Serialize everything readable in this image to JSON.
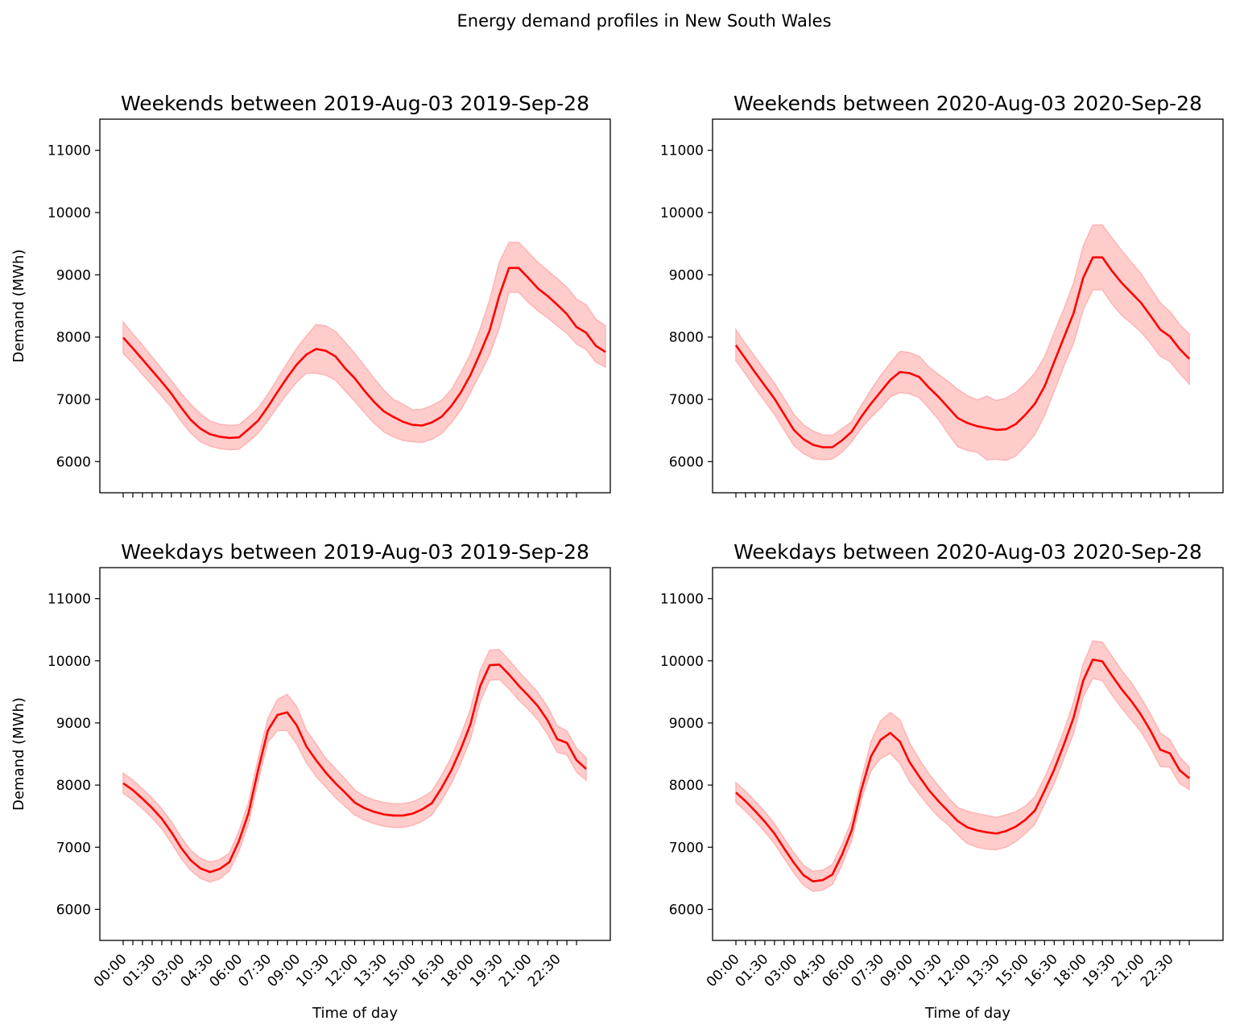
{
  "figure": {
    "suptitle": "Energy demand profiles in New South Wales"
  },
  "chart_data": [
    {
      "type": "line",
      "title": "Weekends between 2019-Aug-03 2019-Sep-28",
      "xlabel": "",
      "ylabel": "Demand (MWh)",
      "ylim": [
        5500,
        11500
      ],
      "yticks": [
        6000,
        7000,
        8000,
        9000,
        10000,
        11000
      ],
      "x_tick_labels": [],
      "line_color": "#ff0000",
      "band_color": "#ffcccc",
      "series": [
        {
          "name": "mean",
          "values": [
            7990,
            7820,
            7640,
            7460,
            7280,
            7090,
            6870,
            6670,
            6530,
            6440,
            6400,
            6380,
            6390,
            6520,
            6660,
            6880,
            7120,
            7350,
            7560,
            7720,
            7810,
            7780,
            7690,
            7500,
            7340,
            7140,
            6960,
            6810,
            6720,
            6640,
            6590,
            6580,
            6630,
            6720,
            6890,
            7110,
            7390,
            7740,
            8110,
            8670,
            9110,
            9110,
            8950,
            8780,
            8660,
            8520,
            8370,
            8160,
            8070,
            7860,
            7760
          ]
        },
        {
          "name": "upper",
          "values": [
            8240,
            8050,
            7870,
            7680,
            7490,
            7300,
            7100,
            6920,
            6770,
            6650,
            6600,
            6580,
            6590,
            6720,
            6860,
            7080,
            7330,
            7580,
            7820,
            8020,
            8200,
            8180,
            8090,
            7920,
            7740,
            7540,
            7340,
            7150,
            7000,
            6920,
            6830,
            6840,
            6900,
            6980,
            7150,
            7420,
            7730,
            8130,
            8600,
            9200,
            9520,
            9520,
            9360,
            9200,
            9070,
            8940,
            8800,
            8610,
            8520,
            8290,
            8180
          ]
        },
        {
          "name": "lower",
          "values": [
            7740,
            7580,
            7400,
            7230,
            7050,
            6870,
            6650,
            6460,
            6320,
            6250,
            6210,
            6190,
            6200,
            6320,
            6460,
            6660,
            6880,
            7090,
            7280,
            7420,
            7420,
            7390,
            7310,
            7140,
            6970,
            6790,
            6620,
            6480,
            6400,
            6340,
            6320,
            6310,
            6360,
            6450,
            6620,
            6830,
            7110,
            7410,
            7720,
            8150,
            8720,
            8720,
            8560,
            8420,
            8310,
            8180,
            8060,
            7890,
            7800,
            7600,
            7520
          ]
        }
      ]
    },
    {
      "type": "line",
      "title": "Weekends between 2020-Aug-03 2020-Sep-28",
      "xlabel": "",
      "ylabel": "",
      "ylim": [
        5500,
        11500
      ],
      "yticks": [
        6000,
        7000,
        8000,
        9000,
        10000,
        11000
      ],
      "x_tick_labels": [],
      "line_color": "#ff0000",
      "band_color": "#ffcccc",
      "series": [
        {
          "name": "mean",
          "values": [
            7870,
            7650,
            7430,
            7220,
            7010,
            6760,
            6510,
            6360,
            6270,
            6230,
            6230,
            6340,
            6480,
            6720,
            6930,
            7120,
            7310,
            7440,
            7420,
            7360,
            7190,
            7040,
            6870,
            6700,
            6620,
            6570,
            6540,
            6510,
            6520,
            6600,
            6750,
            6930,
            7210,
            7600,
            7990,
            8380,
            8950,
            9280,
            9280,
            9060,
            8870,
            8710,
            8550,
            8340,
            8120,
            8010,
            7810,
            7650
          ]
        },
        {
          "name": "upper",
          "values": [
            8120,
            7890,
            7680,
            7470,
            7260,
            7010,
            6760,
            6590,
            6490,
            6430,
            6420,
            6530,
            6640,
            6900,
            7150,
            7380,
            7580,
            7770,
            7750,
            7690,
            7520,
            7400,
            7290,
            7160,
            7060,
            6990,
            7050,
            6980,
            7020,
            7110,
            7250,
            7420,
            7680,
            8070,
            8450,
            8860,
            9460,
            9800,
            9800,
            9590,
            9390,
            9200,
            9020,
            8780,
            8550,
            8410,
            8200,
            8050
          ]
        },
        {
          "name": "lower",
          "values": [
            7620,
            7410,
            7180,
            6970,
            6760,
            6510,
            6260,
            6130,
            6050,
            6030,
            6040,
            6150,
            6320,
            6540,
            6710,
            6860,
            7040,
            7110,
            7090,
            7030,
            6860,
            6680,
            6450,
            6240,
            6180,
            6150,
            6030,
            6040,
            6020,
            6090,
            6250,
            6440,
            6740,
            7130,
            7530,
            7900,
            8440,
            8760,
            8760,
            8530,
            8350,
            8220,
            8080,
            7900,
            7690,
            7610,
            7420,
            7250
          ]
        }
      ]
    },
    {
      "type": "line",
      "title": "Weekdays between 2019-Aug-03 2019-Sep-28",
      "xlabel": "Time of day",
      "ylabel": "Demand (MWh)",
      "ylim": [
        5500,
        11500
      ],
      "yticks": [
        6000,
        7000,
        8000,
        9000,
        10000,
        11000
      ],
      "x_tick_labels": [
        "00:00",
        "01:30",
        "03:00",
        "04:30",
        "06:00",
        "07:30",
        "09:00",
        "10:30",
        "12:00",
        "13:30",
        "15:00",
        "16:30",
        "18:00",
        "19:30",
        "21:00",
        "22:30"
      ],
      "line_color": "#ff0000",
      "band_color": "#ffcccc",
      "series": [
        {
          "name": "mean",
          "values": [
            8030,
            7920,
            7780,
            7630,
            7460,
            7240,
            6990,
            6790,
            6660,
            6600,
            6650,
            6760,
            7100,
            7550,
            8250,
            8880,
            9130,
            9170,
            8960,
            8620,
            8400,
            8200,
            8030,
            7880,
            7720,
            7630,
            7570,
            7530,
            7510,
            7510,
            7540,
            7610,
            7710,
            7950,
            8230,
            8580,
            8980,
            9590,
            9930,
            9940,
            9780,
            9600,
            9440,
            9270,
            9040,
            8740,
            8680,
            8400,
            8260
          ]
        },
        {
          "name": "upper",
          "values": [
            8190,
            8080,
            7940,
            7790,
            7620,
            7410,
            7160,
            6950,
            6820,
            6760,
            6800,
            6900,
            7260,
            7720,
            8430,
            9070,
            9380,
            9460,
            9260,
            8880,
            8660,
            8430,
            8260,
            8100,
            7920,
            7820,
            7760,
            7720,
            7700,
            7700,
            7730,
            7800,
            7900,
            8150,
            8440,
            8800,
            9220,
            9840,
            10170,
            10180,
            10010,
            9830,
            9660,
            9490,
            9260,
            8950,
            8870,
            8590,
            8440
          ]
        },
        {
          "name": "lower",
          "values": [
            7870,
            7760,
            7620,
            7470,
            7300,
            7070,
            6820,
            6630,
            6500,
            6440,
            6490,
            6620,
            6940,
            7380,
            8070,
            8690,
            8880,
            8880,
            8660,
            8360,
            8140,
            7970,
            7800,
            7660,
            7520,
            7440,
            7380,
            7340,
            7320,
            7320,
            7350,
            7420,
            7520,
            7750,
            8020,
            8360,
            8740,
            9340,
            9690,
            9700,
            9550,
            9370,
            9220,
            9050,
            8820,
            8530,
            8490,
            8210,
            8080
          ]
        }
      ]
    },
    {
      "type": "line",
      "title": "Weekdays between 2020-Aug-03 2020-Sep-28",
      "xlabel": "Time of day",
      "ylabel": "",
      "ylim": [
        5500,
        11500
      ],
      "yticks": [
        6000,
        7000,
        8000,
        9000,
        10000,
        11000
      ],
      "x_tick_labels": [
        "00:00",
        "01:30",
        "03:00",
        "04:30",
        "06:00",
        "07:30",
        "09:00",
        "10:30",
        "12:00",
        "13:30",
        "15:00",
        "16:30",
        "18:00",
        "19:30",
        "21:00",
        "22:30"
      ],
      "line_color": "#ff0000",
      "band_color": "#ffcccc",
      "series": [
        {
          "name": "mean",
          "values": [
            7880,
            7740,
            7580,
            7410,
            7220,
            6980,
            6750,
            6550,
            6450,
            6470,
            6560,
            6880,
            7270,
            7920,
            8460,
            8730,
            8840,
            8700,
            8370,
            8140,
            7920,
            7740,
            7580,
            7420,
            7320,
            7270,
            7240,
            7220,
            7260,
            7330,
            7440,
            7590,
            7910,
            8250,
            8650,
            9080,
            9680,
            10020,
            9990,
            9760,
            9540,
            9350,
            9130,
            8870,
            8570,
            8510,
            8240,
            8110
          ]
        },
        {
          "name": "upper",
          "values": [
            8040,
            7900,
            7740,
            7570,
            7380,
            7140,
            6910,
            6710,
            6610,
            6630,
            6720,
            7040,
            7430,
            8080,
            8690,
            9030,
            9170,
            9050,
            8680,
            8420,
            8180,
            7990,
            7800,
            7640,
            7580,
            7540,
            7510,
            7480,
            7520,
            7570,
            7660,
            7810,
            8120,
            8470,
            8870,
            9330,
            9940,
            10320,
            10300,
            10070,
            9840,
            9650,
            9400,
            9140,
            8840,
            8730,
            8450,
            8290
          ]
        },
        {
          "name": "lower",
          "values": [
            7720,
            7580,
            7420,
            7250,
            7060,
            6820,
            6590,
            6390,
            6290,
            6310,
            6400,
            6720,
            7110,
            7760,
            8230,
            8430,
            8510,
            8350,
            8060,
            7860,
            7660,
            7490,
            7360,
            7200,
            7060,
            7000,
            6970,
            6960,
            7000,
            7090,
            7220,
            7370,
            7700,
            8030,
            8430,
            8830,
            9420,
            9720,
            9680,
            9450,
            9240,
            9050,
            8860,
            8600,
            8300,
            8290,
            8030,
            7930
          ]
        }
      ]
    }
  ]
}
